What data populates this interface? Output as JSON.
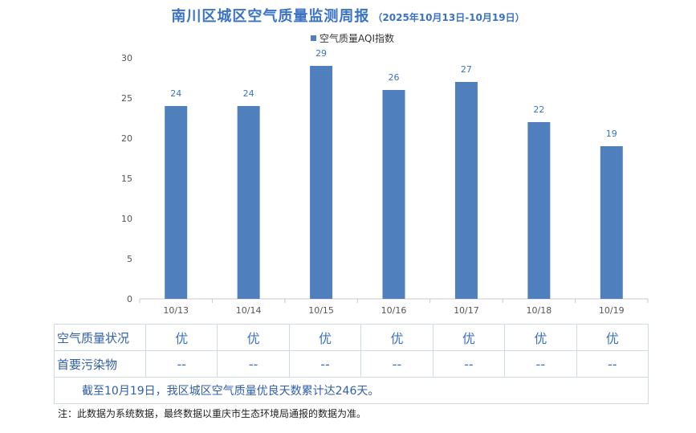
{
  "title": {
    "main": "南川区城区空气质量监测周报",
    "sub": "（2025年10月13日-10月19日）"
  },
  "chart_data": {
    "type": "bar",
    "categories": [
      "10/13",
      "10/14",
      "10/15",
      "10/16",
      "10/17",
      "10/18",
      "10/19"
    ],
    "series": [
      {
        "name": "空气质量AQI指数",
        "values": [
          24,
          24,
          29,
          26,
          27,
          22,
          19
        ]
      }
    ],
    "ylim": [
      0,
      30
    ],
    "yticks": [
      0,
      5,
      10,
      15,
      20,
      25,
      30
    ],
    "grid": false,
    "legend_position": "top",
    "bar_color": "#4f80bd"
  },
  "table": {
    "rows": [
      {
        "label": "空气质量状况",
        "values": [
          "优",
          "优",
          "优",
          "优",
          "优",
          "优",
          "优"
        ]
      },
      {
        "label": "首要污染物",
        "values": [
          "--",
          "--",
          "--",
          "--",
          "--",
          "--",
          "--"
        ]
      }
    ],
    "summary": "截至10月19日，我区城区空气质量优良天数累计达246天。"
  },
  "note": "注：此数据为系统数据，最终数据以重庆市生态环境局通报的数据为准。"
}
